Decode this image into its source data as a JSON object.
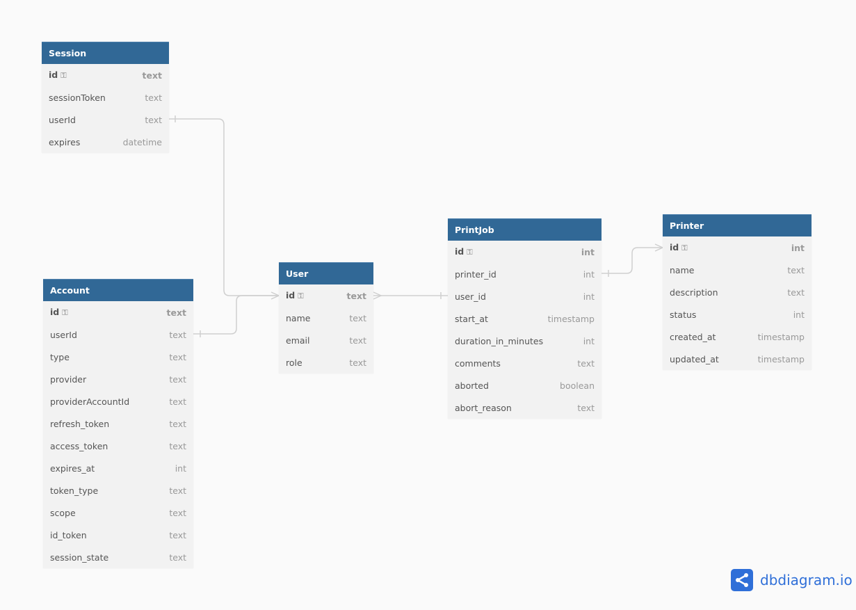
{
  "tables": [
    {
      "name": "Session",
      "pos": "session",
      "columns": [
        {
          "name": "id",
          "type": "text",
          "pk": true
        },
        {
          "name": "sessionToken",
          "type": "text"
        },
        {
          "name": "userId",
          "type": "text"
        },
        {
          "name": "expires",
          "type": "datetime"
        }
      ]
    },
    {
      "name": "Account",
      "pos": "account",
      "columns": [
        {
          "name": "id",
          "type": "text",
          "pk": true
        },
        {
          "name": "userId",
          "type": "text"
        },
        {
          "name": "type",
          "type": "text"
        },
        {
          "name": "provider",
          "type": "text"
        },
        {
          "name": "providerAccountId",
          "type": "text"
        },
        {
          "name": "refresh_token",
          "type": "text"
        },
        {
          "name": "access_token",
          "type": "text"
        },
        {
          "name": "expires_at",
          "type": "int"
        },
        {
          "name": "token_type",
          "type": "text"
        },
        {
          "name": "scope",
          "type": "text"
        },
        {
          "name": "id_token",
          "type": "text"
        },
        {
          "name": "session_state",
          "type": "text"
        }
      ]
    },
    {
      "name": "User",
      "pos": "user",
      "columns": [
        {
          "name": "id",
          "type": "text",
          "pk": true
        },
        {
          "name": "name",
          "type": "text"
        },
        {
          "name": "email",
          "type": "text"
        },
        {
          "name": "role",
          "type": "text"
        }
      ]
    },
    {
      "name": "PrintJob",
      "pos": "printjob",
      "columns": [
        {
          "name": "id",
          "type": "int",
          "pk": true
        },
        {
          "name": "printer_id",
          "type": "int"
        },
        {
          "name": "user_id",
          "type": "int"
        },
        {
          "name": "start_at",
          "type": "timestamp"
        },
        {
          "name": "duration_in_minutes",
          "type": "int"
        },
        {
          "name": "comments",
          "type": "text"
        },
        {
          "name": "aborted",
          "type": "boolean"
        },
        {
          "name": "abort_reason",
          "type": "text"
        }
      ]
    },
    {
      "name": "Printer",
      "pos": "printer",
      "columns": [
        {
          "name": "id",
          "type": "int",
          "pk": true
        },
        {
          "name": "name",
          "type": "text"
        },
        {
          "name": "description",
          "type": "text"
        },
        {
          "name": "status",
          "type": "int"
        },
        {
          "name": "created_at",
          "type": "timestamp"
        },
        {
          "name": "updated_at",
          "type": "timestamp"
        }
      ]
    }
  ],
  "relations": [
    {
      "from": "Session.userId",
      "to": "User.id",
      "type": "many-to-one"
    },
    {
      "from": "Account.userId",
      "to": "User.id",
      "type": "many-to-one"
    },
    {
      "from": "PrintJob.user_id",
      "to": "User.id",
      "type": "many-to-one"
    },
    {
      "from": "PrintJob.printer_id",
      "to": "Printer.id",
      "type": "many-to-one"
    }
  ],
  "header_color": "#316896",
  "logo": {
    "text": "dbdiagram.io",
    "color": "#2f6fd8"
  }
}
